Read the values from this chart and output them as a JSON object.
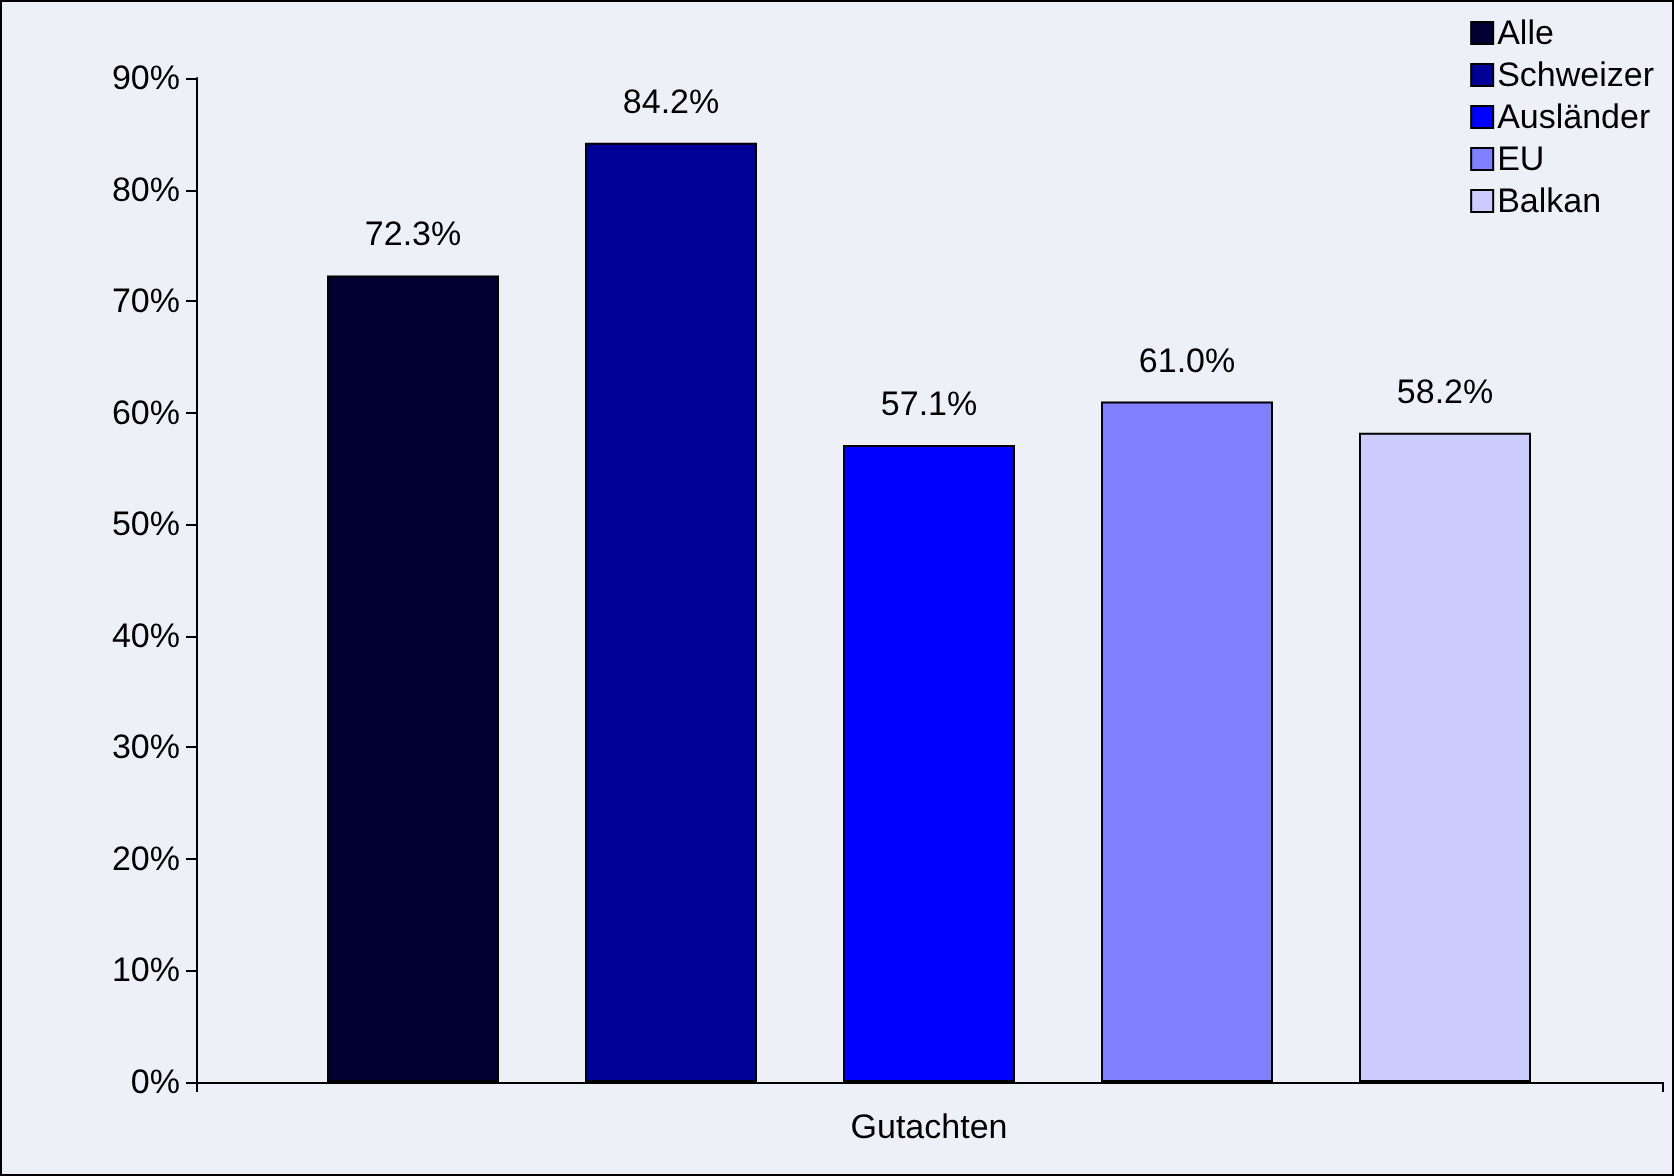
{
  "chart_data": {
    "type": "bar",
    "categories": [
      "Gutachten"
    ],
    "series": [
      {
        "name": "Alle",
        "color": "#000033",
        "values": [
          72.3
        ],
        "value_labels": [
          "72.3%"
        ]
      },
      {
        "name": "Schweizer",
        "color": "#000099",
        "values": [
          84.2
        ],
        "value_labels": [
          "84.2%"
        ]
      },
      {
        "name": "Ausländer",
        "color": "#0000ff",
        "values": [
          57.1
        ],
        "value_labels": [
          "57.1%"
        ]
      },
      {
        "name": "EU",
        "color": "#8080ff",
        "values": [
          61.0
        ],
        "value_labels": [
          "61.0%"
        ]
      },
      {
        "name": "Balkan",
        "color": "#ccccff",
        "values": [
          58.2
        ],
        "value_labels": [
          "58.2%"
        ]
      }
    ],
    "ylim": [
      0,
      90
    ],
    "yticks": [
      {
        "value": 0,
        "label": "0%"
      },
      {
        "value": 10,
        "label": "10%"
      },
      {
        "value": 20,
        "label": "20%"
      },
      {
        "value": 30,
        "label": "30%"
      },
      {
        "value": 40,
        "label": "40%"
      },
      {
        "value": 50,
        "label": "50%"
      },
      {
        "value": 60,
        "label": "60%"
      },
      {
        "value": 70,
        "label": "70%"
      },
      {
        "value": 80,
        "label": "80%"
      },
      {
        "value": 90,
        "label": "90%"
      }
    ],
    "grid": false,
    "legend": "top right"
  }
}
